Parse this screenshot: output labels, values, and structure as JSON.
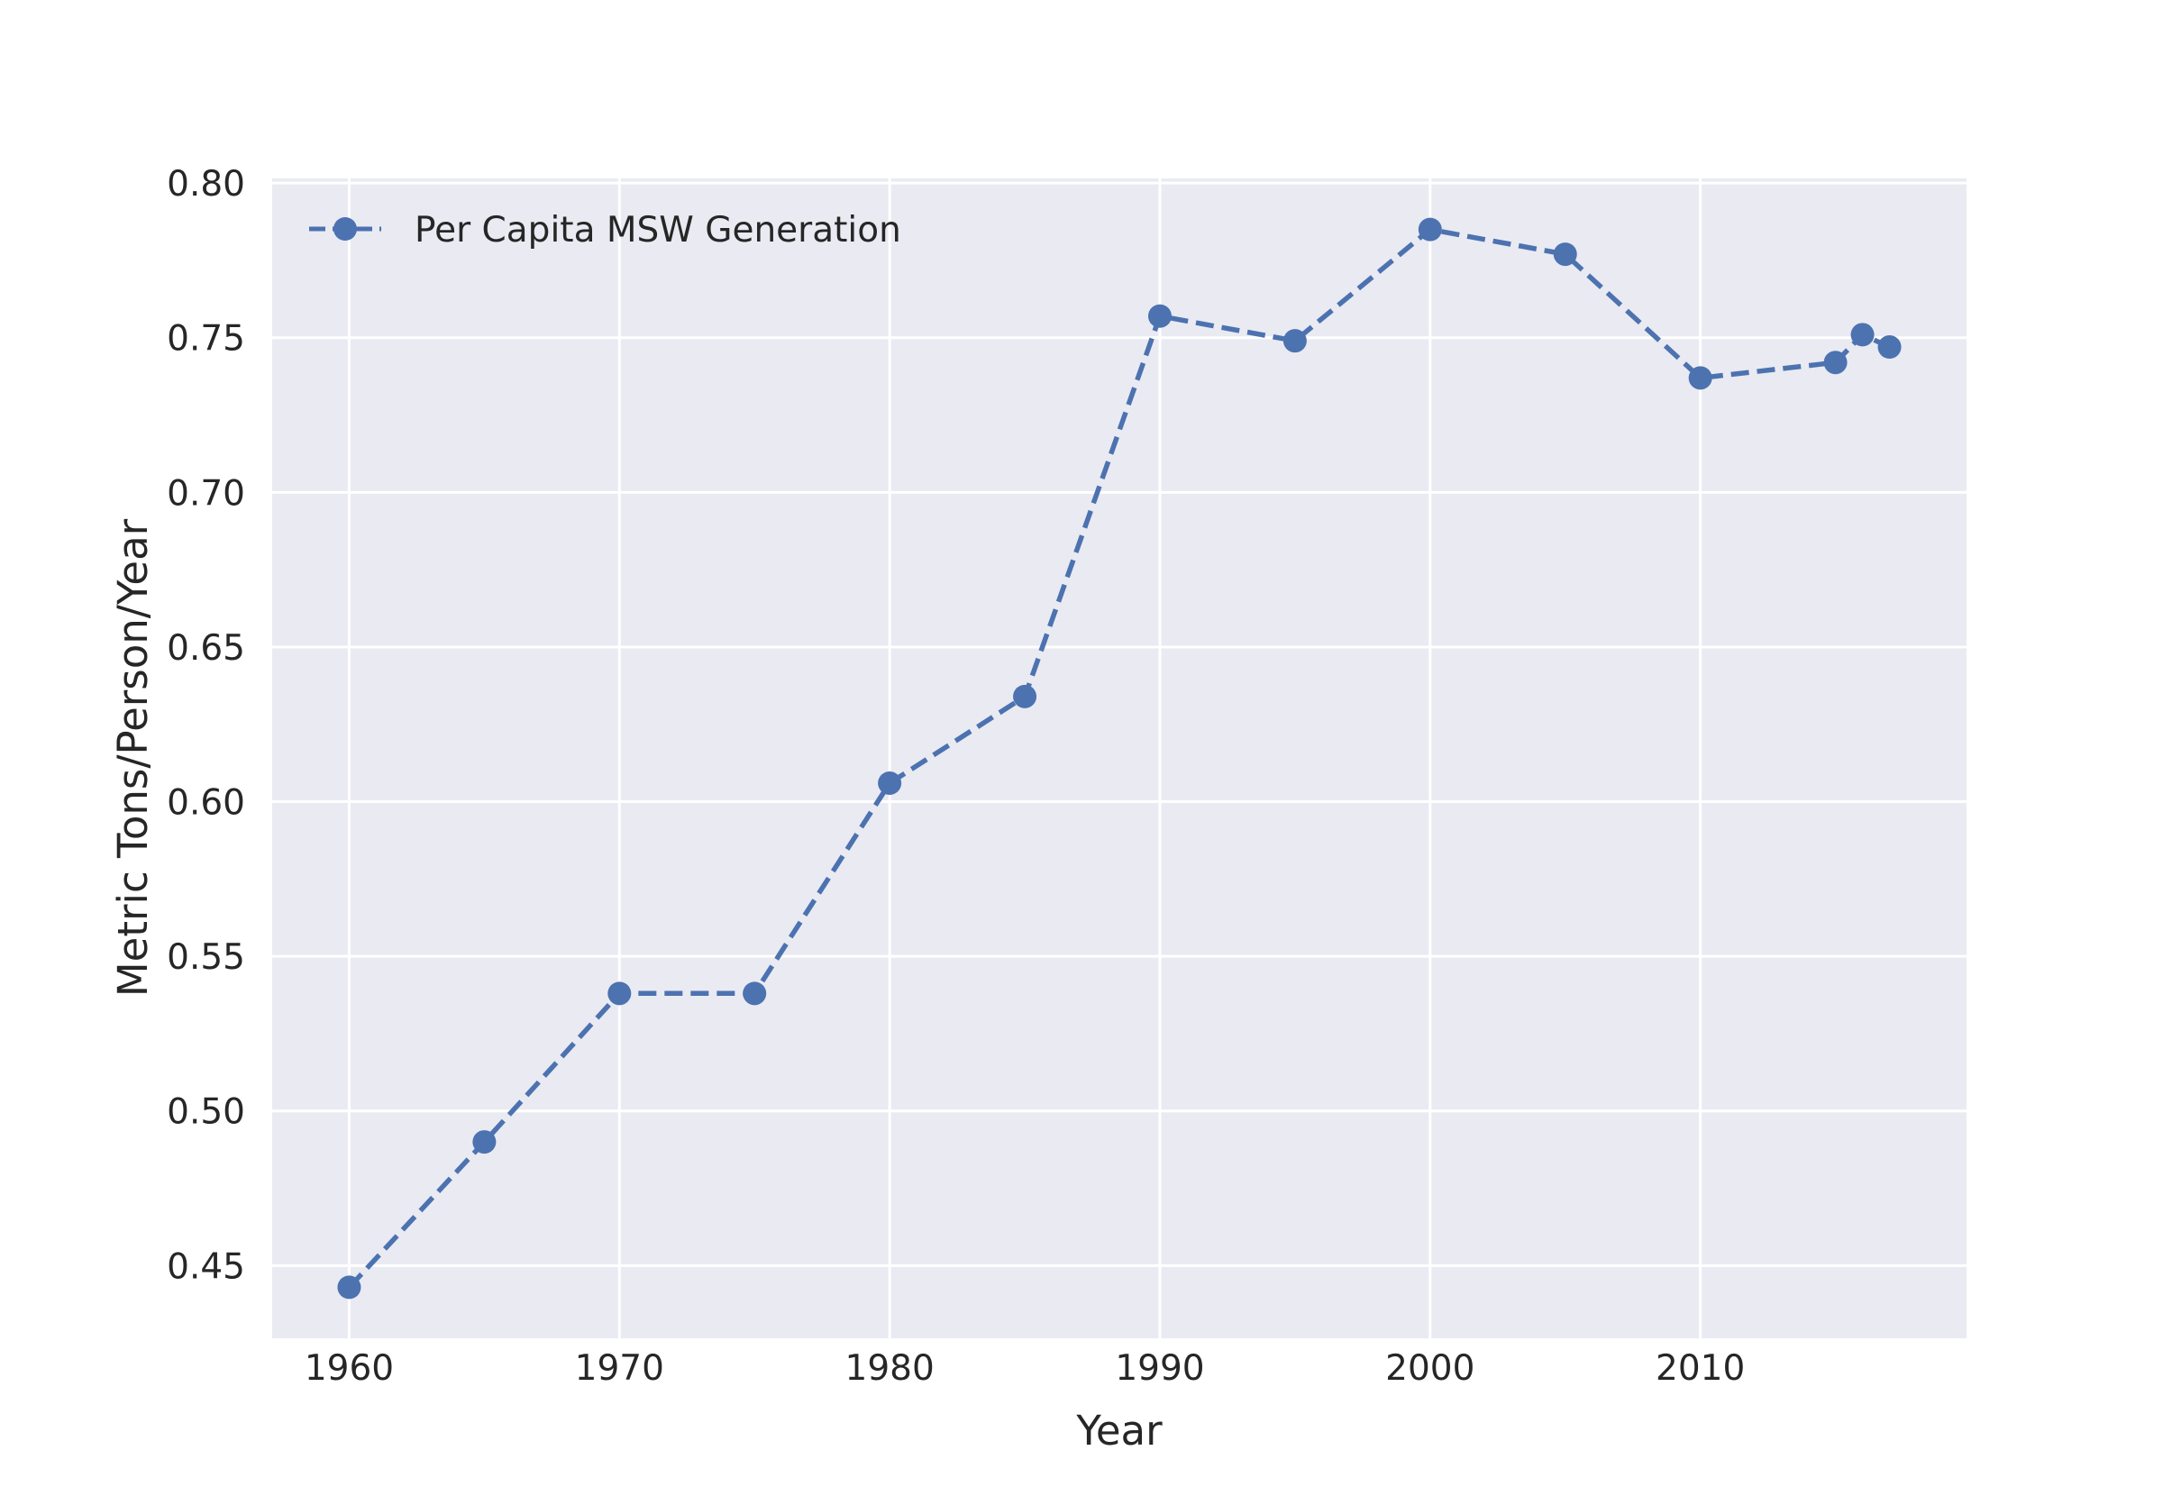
{
  "chart_data": {
    "type": "line",
    "xlabel": "Year",
    "ylabel": "Metric Tons/Person/Year",
    "xlim": [
      1957.15,
      2019.85
    ],
    "ylim": [
      0.4265,
      0.8015
    ],
    "x_ticks": [
      1960,
      1970,
      1980,
      1990,
      2000,
      2010
    ],
    "y_ticks": [
      0.45,
      0.5,
      0.55,
      0.6,
      0.65,
      0.7,
      0.75,
      0.8
    ],
    "y_tick_labels": [
      "0.45",
      "0.50",
      "0.55",
      "0.60",
      "0.65",
      "0.70",
      "0.75",
      "0.80"
    ],
    "grid": true,
    "legend_position": "top-left",
    "series": [
      {
        "name": "Per Capita MSW Generation",
        "color": "#4c72b0",
        "line_style": "dashed",
        "marker": "circle",
        "x": [
          1960,
          1965,
          1970,
          1975,
          1980,
          1985,
          1990,
          1995,
          2000,
          2005,
          2010,
          2015,
          2016,
          2017
        ],
        "y": [
          0.443,
          0.49,
          0.538,
          0.538,
          0.606,
          0.634,
          0.757,
          0.749,
          0.785,
          0.777,
          0.737,
          0.742,
          0.751,
          0.747
        ]
      }
    ]
  }
}
